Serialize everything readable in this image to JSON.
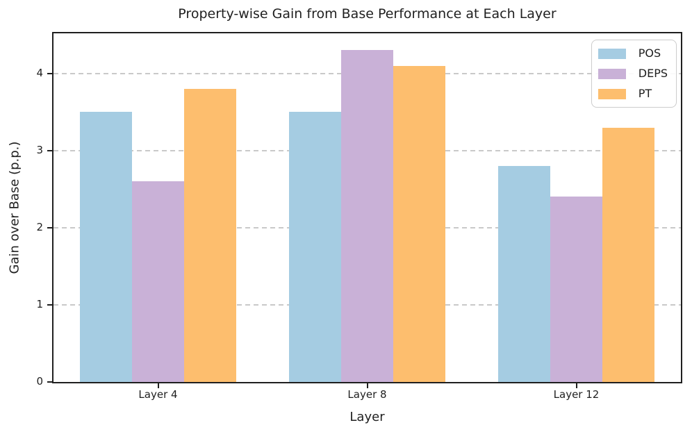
{
  "chart_data": {
    "type": "bar",
    "title": "Property-wise Gain from Base Performance at Each Layer",
    "xlabel": "Layer",
    "ylabel": "Gain over Base (p.p.)",
    "categories": [
      "Layer 4",
      "Layer 8",
      "Layer 12"
    ],
    "series": [
      {
        "name": "POS",
        "color": "#a5cce2",
        "values": [
          3.5,
          3.5,
          2.8
        ]
      },
      {
        "name": "DEPS",
        "color": "#c9b1d7",
        "values": [
          2.6,
          4.3,
          2.4
        ]
      },
      {
        "name": "PT",
        "color": "#fdbe6e",
        "values": [
          3.8,
          4.1,
          3.3
        ]
      }
    ],
    "yticks": [
      0,
      1,
      2,
      3,
      4
    ],
    "ylim": [
      0,
      4.52
    ],
    "bar_width_frac": 0.25,
    "grid": "horizontal-dashed",
    "grid_color": "#c9c9c9",
    "axis_color": "#1f1f1f",
    "legend_position": "upper right"
  }
}
